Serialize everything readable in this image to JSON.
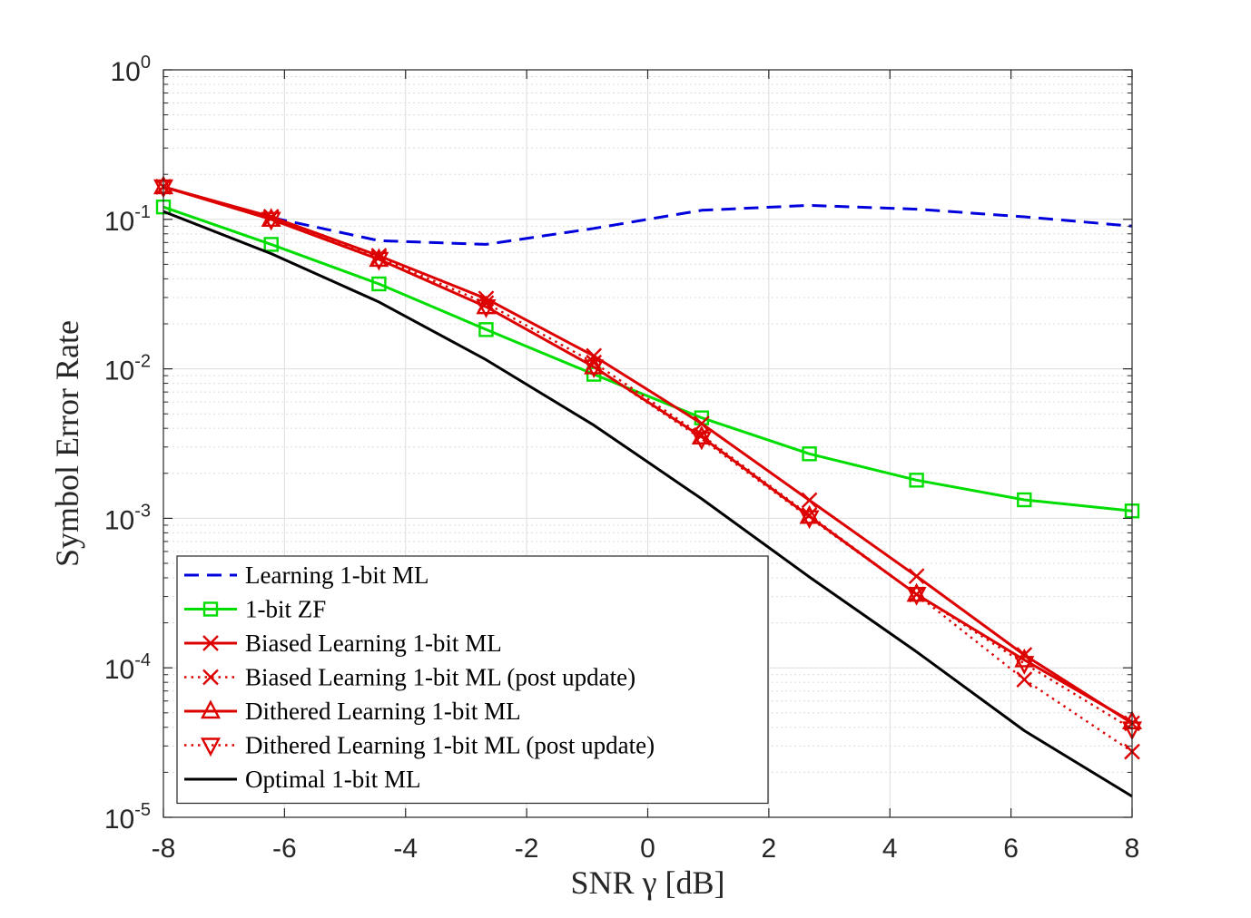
{
  "chart_data": {
    "type": "line",
    "xlabel": "SNR γ [dB]",
    "ylabel": "Symbol Error Rate",
    "x": [
      -8,
      -6.22,
      -4.44,
      -2.67,
      -0.89,
      0.89,
      2.67,
      4.44,
      6.22,
      8
    ],
    "xlim": [
      -8,
      8
    ],
    "xticks": [
      -8,
      -6,
      -4,
      -2,
      0,
      2,
      4,
      6,
      8
    ],
    "xtick_labels": [
      "-8",
      "-6",
      "-4",
      "-2",
      "0",
      "2",
      "4",
      "6",
      "8"
    ],
    "yscale": "log",
    "ylim": [
      1e-05,
      1
    ],
    "yticks": [
      {
        "value": 1,
        "base": "10",
        "exp": "0"
      },
      {
        "value": 0.1,
        "base": "10",
        "exp": "-1"
      },
      {
        "value": 0.01,
        "base": "10",
        "exp": "-2"
      },
      {
        "value": 0.001,
        "base": "10",
        "exp": "-3"
      },
      {
        "value": 0.0001,
        "base": "10",
        "exp": "-4"
      },
      {
        "value": 1e-05,
        "base": "10",
        "exp": "-5"
      }
    ],
    "grid": true,
    "minor_grid": true,
    "legend_position": "bottom-left",
    "series": [
      {
        "name": "Learning 1-bit ML",
        "color": "#0000dd",
        "line": "dashed",
        "marker": "none",
        "values": [
          0.165,
          0.103,
          0.072,
          0.068,
          0.087,
          0.115,
          0.124,
          0.117,
          0.104,
          0.09
        ]
      },
      {
        "name": "1-bit ZF",
        "color": "#00dd00",
        "line": "solid",
        "marker": "square",
        "values": [
          0.121,
          0.068,
          0.037,
          0.0183,
          0.0092,
          0.0047,
          0.0027,
          0.0018,
          0.00133,
          0.00112
        ]
      },
      {
        "name": "Biased Learning 1-bit ML",
        "color": "#dd0000",
        "line": "solid",
        "marker": "x",
        "values": [
          0.165,
          0.104,
          0.057,
          0.0295,
          0.0122,
          0.0043,
          0.00132,
          0.00041,
          0.000122,
          4.25e-05
        ]
      },
      {
        "name": "Biased Learning 1-bit ML (post update)",
        "color": "#dd0000",
        "line": "dotted",
        "marker": "x",
        "values": [
          0.165,
          0.102,
          0.0555,
          0.0275,
          0.011,
          0.0036,
          0.00105,
          0.00031,
          8.35e-05,
          2.75e-05
        ]
      },
      {
        "name": "Dithered Learning 1-bit ML",
        "color": "#dd0000",
        "line": "solid",
        "marker": "triangle-up",
        "values": [
          0.165,
          0.1,
          0.054,
          0.026,
          0.0103,
          0.0035,
          0.00103,
          0.00031,
          0.000113,
          4.35e-05
        ]
      },
      {
        "name": "Dithered Learning 1-bit ML (post update)",
        "color": "#dd0000",
        "line": "dotted",
        "marker": "triangle-down",
        "values": [
          0.165,
          0.1,
          0.054,
          0.026,
          0.0103,
          0.0034,
          0.00101,
          0.00031,
          0.000107,
          3.9e-05
        ]
      },
      {
        "name": "Optimal 1-bit ML",
        "color": "#000000",
        "line": "solid",
        "marker": "none",
        "values": [
          0.113,
          0.059,
          0.028,
          0.0115,
          0.0042,
          0.00135,
          0.000405,
          0.000128,
          3.8e-05,
          1.38e-05
        ]
      }
    ]
  }
}
